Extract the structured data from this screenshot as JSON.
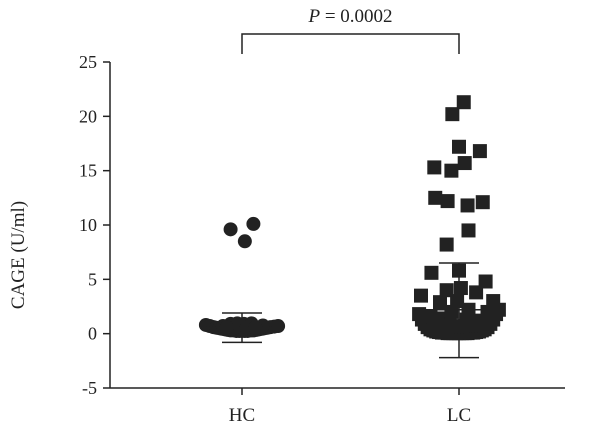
{
  "chart_data": {
    "type": "scatter",
    "categories": [
      "HC",
      "LC"
    ],
    "ylabel": "CAGE (U/ml)",
    "ylim": [
      -5,
      25
    ],
    "yticks": [
      -5,
      0,
      5,
      10,
      15,
      20,
      25
    ],
    "grid": false,
    "annotation": {
      "prefix": "P",
      "text": " = 0.0002"
    },
    "series": [
      {
        "category": "HC",
        "marker": "circle",
        "mean": 0.6,
        "sd_upper": 1.9,
        "sd_lower": -0.8,
        "points": [
          [
            -0.38,
            0.8
          ],
          [
            -0.34,
            0.7
          ],
          [
            -0.3,
            0.6
          ],
          [
            -0.27,
            0.55
          ],
          [
            -0.24,
            0.5
          ],
          [
            -0.21,
            0.45
          ],
          [
            -0.18,
            0.4
          ],
          [
            -0.15,
            0.35
          ],
          [
            -0.12,
            0.3
          ],
          [
            -0.09,
            0.3
          ],
          [
            -0.06,
            0.25
          ],
          [
            -0.03,
            0.25
          ],
          [
            0.0,
            0.25
          ],
          [
            0.03,
            0.25
          ],
          [
            0.06,
            0.25
          ],
          [
            0.09,
            0.3
          ],
          [
            0.12,
            0.3
          ],
          [
            0.15,
            0.35
          ],
          [
            0.18,
            0.4
          ],
          [
            0.21,
            0.45
          ],
          [
            0.24,
            0.5
          ],
          [
            0.27,
            0.55
          ],
          [
            0.3,
            0.6
          ],
          [
            0.34,
            0.65
          ],
          [
            0.38,
            0.7
          ],
          [
            -0.12,
            0.9
          ],
          [
            -0.05,
            0.95
          ],
          [
            0.02,
            0.9
          ],
          [
            0.1,
            0.95
          ],
          [
            -0.2,
            0.7
          ],
          [
            0.22,
            0.75
          ],
          [
            -0.08,
            0.55
          ],
          [
            0.05,
            0.6
          ],
          [
            0.14,
            0.55
          ],
          [
            -0.16,
            0.6
          ],
          [
            -0.12,
            9.6
          ],
          [
            0.12,
            10.1
          ],
          [
            0.03,
            8.5
          ]
        ]
      },
      {
        "category": "LC",
        "marker": "square",
        "mean": 2.2,
        "sd_upper": 6.5,
        "sd_lower": -2.2,
        "points": [
          [
            -0.42,
            1.8
          ],
          [
            -0.39,
            1.3
          ],
          [
            -0.36,
            0.9
          ],
          [
            -0.33,
            0.6
          ],
          [
            -0.3,
            0.4
          ],
          [
            -0.27,
            0.3
          ],
          [
            -0.24,
            0.2
          ],
          [
            -0.21,
            0.15
          ],
          [
            -0.18,
            0.1
          ],
          [
            -0.15,
            0.1
          ],
          [
            -0.12,
            0.05
          ],
          [
            -0.09,
            0.05
          ],
          [
            -0.06,
            0.05
          ],
          [
            -0.03,
            0.05
          ],
          [
            0.0,
            0.05
          ],
          [
            0.03,
            0.05
          ],
          [
            0.06,
            0.05
          ],
          [
            0.09,
            0.05
          ],
          [
            0.12,
            0.1
          ],
          [
            0.15,
            0.1
          ],
          [
            0.18,
            0.15
          ],
          [
            0.21,
            0.2
          ],
          [
            0.24,
            0.3
          ],
          [
            0.27,
            0.4
          ],
          [
            0.3,
            0.6
          ],
          [
            0.33,
            0.9
          ],
          [
            0.36,
            1.3
          ],
          [
            0.39,
            1.8
          ],
          [
            0.42,
            2.2
          ],
          [
            -0.3,
            1.6
          ],
          [
            -0.2,
            1.4
          ],
          [
            -0.1,
            1.2
          ],
          [
            0.08,
            1.3
          ],
          [
            0.2,
            1.2
          ],
          [
            0.3,
            1.5
          ],
          [
            -0.15,
            0.8
          ],
          [
            0.0,
            0.7
          ],
          [
            0.15,
            0.75
          ],
          [
            -0.25,
            0.9
          ],
          [
            0.25,
            0.95
          ],
          [
            -0.4,
            3.5
          ],
          [
            -0.29,
            5.6
          ],
          [
            -0.2,
            2.9
          ],
          [
            -0.13,
            4.0
          ],
          [
            -0.08,
            2.0
          ],
          [
            0.0,
            5.8
          ],
          [
            0.02,
            4.2
          ],
          [
            0.1,
            2.2
          ],
          [
            0.18,
            3.8
          ],
          [
            0.28,
            4.8
          ],
          [
            0.36,
            3.0
          ],
          [
            0.3,
            2.0
          ],
          [
            -0.02,
            3.0
          ],
          [
            -0.13,
            8.2
          ],
          [
            0.1,
            9.5
          ],
          [
            -0.25,
            12.5
          ],
          [
            -0.12,
            12.2
          ],
          [
            0.09,
            11.8
          ],
          [
            0.25,
            12.1
          ],
          [
            -0.26,
            15.3
          ],
          [
            -0.08,
            15.0
          ],
          [
            0.06,
            15.7
          ],
          [
            0.0,
            17.2
          ],
          [
            0.22,
            16.8
          ],
          [
            -0.07,
            20.2
          ],
          [
            0.05,
            21.3
          ]
        ]
      }
    ]
  }
}
